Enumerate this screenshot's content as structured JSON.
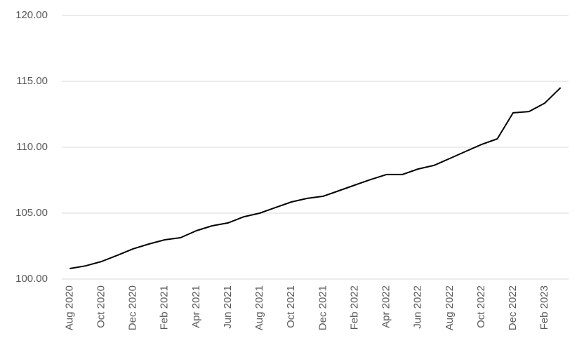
{
  "chart_data": {
    "type": "line",
    "categories": [
      "Aug 2020",
      null,
      "Oct 2020",
      null,
      "Dec 2020",
      null,
      "Feb 2021",
      null,
      "Apr 2021",
      null,
      "Jun 2021",
      null,
      "Aug 2021",
      null,
      "Oct 2021",
      null,
      "Dec 2021",
      null,
      "Feb 2022",
      null,
      "Apr 2022",
      null,
      "Jun 2022",
      null,
      "Aug 2022",
      null,
      "Oct 2022",
      null,
      "Dec 2022",
      null,
      "Feb 2023",
      null
    ],
    "values": [
      100.8,
      101.0,
      101.33,
      101.8,
      102.29,
      102.66,
      102.98,
      103.14,
      103.67,
      104.04,
      104.26,
      104.73,
      105.0,
      105.43,
      105.85,
      106.12,
      106.28,
      106.7,
      107.13,
      107.55,
      107.93,
      107.93,
      108.35,
      108.62,
      109.15,
      109.68,
      110.21,
      110.64,
      112.61,
      112.71,
      113.35,
      114.52
    ],
    "color": "#000000",
    "ylim": [
      100,
      120
    ],
    "yticks": [
      {
        "value": 100,
        "label": "100.00"
      },
      {
        "value": 105,
        "label": "105.00"
      },
      {
        "value": 110,
        "label": "110.00"
      },
      {
        "value": 115,
        "label": "115.00"
      },
      {
        "value": 120,
        "label": "120.00"
      }
    ],
    "grid": true
  }
}
